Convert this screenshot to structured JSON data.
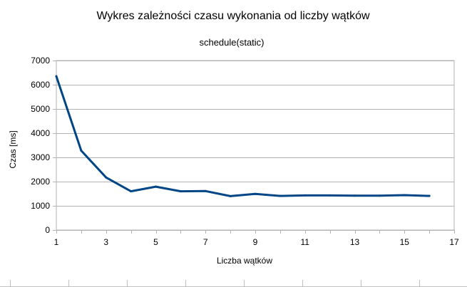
{
  "chart_data": {
    "type": "line",
    "title": "Wykres zależności czasu wykonania od liczby wątków",
    "subtitle": "schedule(static)",
    "xlabel": "Liczba wątków",
    "ylabel": "Czas [ms]",
    "xlim": [
      1,
      17
    ],
    "ylim": [
      0,
      7000
    ],
    "x_ticks": [
      1,
      3,
      5,
      7,
      9,
      11,
      13,
      15,
      17
    ],
    "y_ticks": [
      0,
      1000,
      2000,
      3000,
      4000,
      5000,
      6000,
      7000
    ],
    "grid": "horizontal",
    "legend": "none",
    "series": [
      {
        "color": "#004586",
        "x": [
          1,
          2,
          3,
          4,
          5,
          6,
          7,
          8,
          9,
          10,
          11,
          12,
          13,
          14,
          15,
          16
        ],
        "values": [
          6350,
          3280,
          2170,
          1600,
          1790,
          1600,
          1610,
          1400,
          1490,
          1410,
          1430,
          1430,
          1420,
          1420,
          1440,
          1410
        ]
      }
    ]
  }
}
